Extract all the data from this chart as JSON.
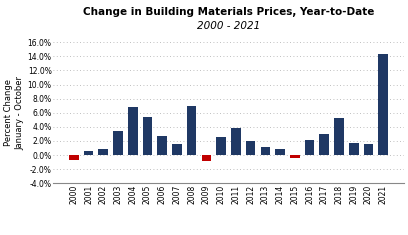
{
  "title_line1": "Change in Building Materials Prices, Year-to-Date",
  "title_line2": "2000 - 2021",
  "ylabel": "Percent Change\nJanuary - October",
  "years": [
    2000,
    2001,
    2002,
    2003,
    2004,
    2005,
    2006,
    2007,
    2008,
    2009,
    2010,
    2011,
    2012,
    2013,
    2014,
    2015,
    2016,
    2017,
    2018,
    2019,
    2020,
    2021
  ],
  "values": [
    -0.7,
    0.6,
    0.9,
    3.4,
    6.8,
    5.4,
    2.7,
    1.6,
    7.0,
    -0.9,
    2.5,
    3.9,
    2.0,
    1.1,
    0.9,
    -0.4,
    2.1,
    3.0,
    5.2,
    1.7,
    1.6,
    14.4
  ],
  "colors_positive": "#1F3864",
  "colors_negative": "#C00000",
  "ylim_min": -4.0,
  "ylim_max": 16.0,
  "yticks": [
    -4.0,
    -2.0,
    0.0,
    2.0,
    4.0,
    6.0,
    8.0,
    10.0,
    12.0,
    14.0,
    16.0
  ],
  "background_color": "#ffffff",
  "grid_color": "#aaaaaa",
  "title_fontsize": 7.5,
  "subtitle_fontsize": 7.5,
  "ylabel_fontsize": 6.0,
  "tick_fontsize": 5.5,
  "bar_width": 0.65
}
